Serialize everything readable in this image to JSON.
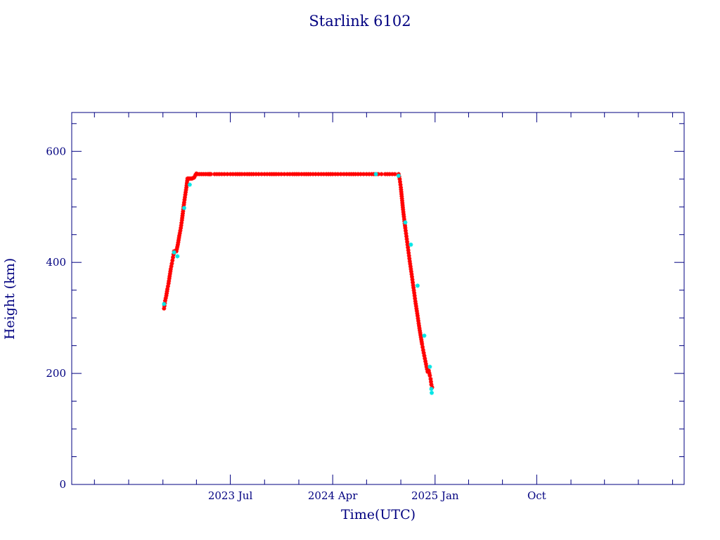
{
  "chart_data": {
    "type": "scatter",
    "title": "Starlink 6102",
    "xlabel": "Time(UTC)",
    "ylabel": "Height (km)",
    "ylim": [
      0,
      670
    ],
    "xlim": [
      "2022-05-01",
      "2026-11-01"
    ],
    "y_ticks": [
      0,
      200,
      400,
      600
    ],
    "x_ticks": [
      {
        "date": "2023-07-01",
        "label": "2023 Jul"
      },
      {
        "date": "2024-04-01",
        "label": "2024 Apr"
      },
      {
        "date": "2025-01-01",
        "label": "2025 Jan"
      },
      {
        "date": "2025-10-01",
        "label": "Oct"
      }
    ],
    "grid": false,
    "colors": {
      "axis": "#000080",
      "text": "#000080",
      "primary_series": "#ff0000",
      "secondary_series": "#00e5e5"
    },
    "series": [
      {
        "color": "#ff0000",
        "marker": "star",
        "x": [
          "2023-01-04",
          "2023-01-07",
          "2023-01-10",
          "2023-01-13",
          "2023-01-16",
          "2023-01-19",
          "2023-01-22",
          "2023-01-25",
          "2023-01-28",
          "2023-01-31",
          "2023-02-03",
          "2023-02-06",
          "2023-02-10",
          "2023-02-14",
          "2023-02-18",
          "2023-02-21",
          "2023-02-24",
          "2023-02-27",
          "2023-03-02",
          "2023-03-05",
          "2023-03-08",
          "2023-03-11",
          "2023-03-14",
          "2023-03-17",
          "2023-03-20",
          "2023-03-23",
          "2023-03-26",
          "2023-03-29",
          "2023-04-01",
          "2023-04-05",
          "2023-04-10",
          "2023-04-15",
          "2023-04-20",
          "2023-04-25",
          "2023-04-30",
          "2023-05-04",
          "2023-05-07",
          "2023-05-10",
          "2023-05-20",
          "2023-06-01",
          "2023-06-15",
          "2023-07-01",
          "2023-07-15",
          "2023-08-01",
          "2023-08-15",
          "2023-09-01",
          "2023-09-15",
          "2023-10-01",
          "2023-10-15",
          "2023-11-01",
          "2023-11-15",
          "2023-12-01",
          "2023-12-15",
          "2024-01-01",
          "2024-01-15",
          "2024-02-01",
          "2024-02-15",
          "2024-03-01",
          "2024-03-15",
          "2024-04-01",
          "2024-04-15",
          "2024-05-01",
          "2024-05-15",
          "2024-06-01",
          "2024-06-15",
          "2024-07-01",
          "2024-07-15",
          "2024-08-01",
          "2024-08-10",
          "2024-08-20",
          "2024-09-01",
          "2024-09-15",
          "2024-09-25",
          "2024-09-28",
          "2024-10-01",
          "2024-10-04",
          "2024-10-07",
          "2024-10-10",
          "2024-10-13",
          "2024-10-16",
          "2024-10-19",
          "2024-10-22",
          "2024-10-25",
          "2024-10-28",
          "2024-10-31",
          "2024-11-03",
          "2024-11-06",
          "2024-11-09",
          "2024-11-12",
          "2024-11-15",
          "2024-11-18",
          "2024-11-21",
          "2024-11-24",
          "2024-11-27",
          "2024-11-30",
          "2024-12-03",
          "2024-12-06",
          "2024-12-09",
          "2024-12-12",
          "2024-12-15",
          "2024-12-18",
          "2024-12-20",
          "2024-12-22",
          "2024-12-24"
        ],
        "y": [
          317,
          331,
          340,
          352,
          362,
          375,
          388,
          398,
          409,
          420,
          420,
          420,
          432,
          448,
          462,
          476,
          492,
          508,
          522,
          535,
          551,
          551,
          551,
          551,
          551,
          552,
          553,
          557,
          560,
          559,
          559,
          559,
          559,
          559,
          559,
          559,
          559,
          559,
          559,
          559,
          559,
          559,
          559,
          559,
          559,
          559,
          559,
          559,
          559,
          559,
          559,
          559,
          559,
          559,
          559,
          559,
          559,
          559,
          559,
          559,
          559,
          559,
          559,
          559,
          559,
          559,
          559,
          559,
          559,
          559,
          559,
          559,
          559,
          550,
          535,
          515,
          495,
          478,
          462,
          447,
          432,
          417,
          402,
          388,
          374,
          359,
          345,
          330,
          317,
          304,
          290,
          277,
          265,
          253,
          242,
          232,
          222,
          212,
          203,
          205,
          196,
          190,
          180,
          175
        ]
      },
      {
        "color": "#00e5e5",
        "marker": "star",
        "x": [
          "2023-01-04",
          "2023-01-31",
          "2023-02-09",
          "2023-02-27",
          "2023-03-14",
          "2024-07-26",
          "2024-09-25",
          "2024-10-13",
          "2024-10-28",
          "2024-11-15",
          "2024-12-03",
          "2024-12-18",
          "2024-12-22",
          "2024-12-23"
        ],
        "y": [
          325,
          418,
          411,
          498,
          540,
          559,
          556,
          472,
          432,
          358,
          268,
          212,
          172,
          165
        ]
      }
    ]
  }
}
